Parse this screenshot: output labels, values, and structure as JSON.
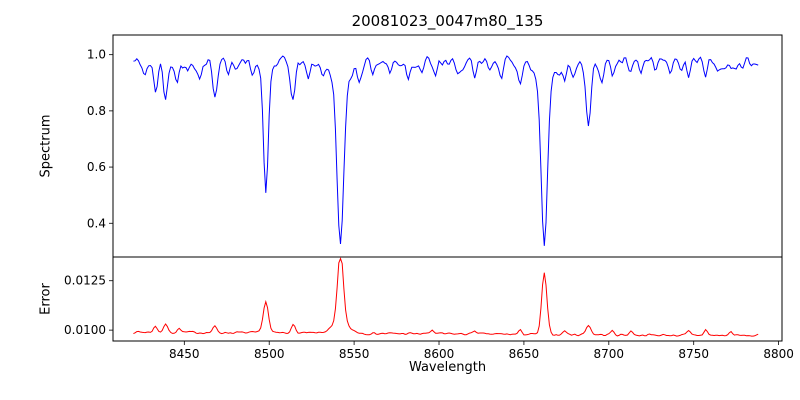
{
  "chart_data": {
    "type": "line",
    "title": "20081023_0047m80_135",
    "xlabel": "Wavelength",
    "xlim": [
      8408,
      8802
    ],
    "xticks": [
      8450,
      8500,
      8550,
      8600,
      8650,
      8700,
      8750,
      8800
    ],
    "xtick_labels": [
      "8450",
      "8500",
      "8550",
      "8600",
      "8650",
      "8700",
      "8750",
      "8800"
    ],
    "grid": false,
    "legend": "none",
    "panels": [
      {
        "name": "spectrum",
        "ylabel": "Spectrum",
        "ylim": [
          0.28,
          1.07
        ],
        "yticks": [
          0.4,
          0.6,
          0.8,
          1.0
        ],
        "ytick_labels": [
          "0.4",
          "0.6",
          "0.8",
          "1.0"
        ],
        "series": {
          "name": "spectrum-flux",
          "color": "#0000ff",
          "x_start": 8420,
          "x_end": 8788,
          "x_step": 1,
          "base_start": 0.973,
          "base_end": 0.973,
          "noise": 0.03,
          "seed": 42,
          "clip_max": 1.03,
          "feature_sign": -1,
          "features": [
            [
              8498,
              0.44,
              1.4
            ],
            [
              8498,
              0.03,
              4
            ],
            [
              8542,
              0.59,
              1.9
            ],
            [
              8542,
              0.07,
              5.5
            ],
            [
              8662,
              0.57,
              1.8
            ],
            [
              8662,
              0.07,
              5.5
            ],
            [
              8688,
              0.24,
              1.5
            ],
            [
              8427,
              0.05,
              1.2
            ],
            [
              8433,
              0.1,
              1.3
            ],
            [
              8439,
              0.13,
              1.2
            ],
            [
              8446,
              0.06,
              1.1
            ],
            [
              8452,
              0.04,
              1.0
            ],
            [
              8459,
              0.06,
              1.1
            ],
            [
              8468,
              0.11,
              1.3
            ],
            [
              8476,
              0.05,
              1.0
            ],
            [
              8490,
              0.04,
              1.0
            ],
            [
              8514,
              0.13,
              1.4
            ],
            [
              8523,
              0.06,
              1.1
            ],
            [
              8532,
              0.04,
              1.0
            ],
            [
              8553,
              0.05,
              1.1
            ],
            [
              8561,
              0.03,
              1.0
            ],
            [
              8571,
              0.04,
              1.0
            ],
            [
              8582,
              0.05,
              1.1
            ],
            [
              8590,
              0.03,
              1.0
            ],
            [
              8598,
              0.06,
              1.1
            ],
            [
              8611,
              0.06,
              1.2
            ],
            [
              8621,
              0.07,
              1.2
            ],
            [
              8630,
              0.04,
              1.0
            ],
            [
              8637,
              0.04,
              1.0
            ],
            [
              8648,
              0.06,
              1.1
            ],
            [
              8674,
              0.06,
              1.1
            ],
            [
              8679,
              0.05,
              1.0
            ],
            [
              8696,
              0.05,
              1.1
            ],
            [
              8702,
              0.04,
              1.0
            ],
            [
              8713,
              0.05,
              1.1
            ],
            [
              8719,
              0.04,
              1.0
            ],
            [
              8727,
              0.04,
              1.0
            ],
            [
              8736,
              0.04,
              1.0
            ],
            [
              8742,
              0.03,
              1.0
            ],
            [
              8747,
              0.05,
              1.1
            ],
            [
              8757,
              0.04,
              1.0
            ],
            [
              8764,
              0.04,
              1.0
            ],
            [
              8772,
              0.04,
              1.0
            ],
            [
              8779,
              0.03,
              1.0
            ]
          ]
        }
      },
      {
        "name": "error",
        "ylabel": "Error",
        "ylim": [
          0.00945,
          0.0137
        ],
        "yticks": [
          0.01,
          0.0125
        ],
        "ytick_labels": [
          "0.0100",
          "0.0125"
        ],
        "series": {
          "name": "error-level",
          "color": "#ff0000",
          "x_start": 8420,
          "x_end": 8788,
          "x_step": 1,
          "base_start": 0.0099,
          "base_end": 0.00972,
          "noise": 8e-05,
          "seed": 7,
          "clip_max": 0.01362,
          "feature_sign": 1,
          "features": [
            [
              8498,
              0.0016,
              1.5
            ],
            [
              8542,
              0.0036,
              1.7
            ],
            [
              8542,
              0.0005,
              5
            ],
            [
              8662,
              0.0031,
              1.5
            ],
            [
              8688,
              0.0005,
              1.4
            ],
            [
              8514,
              0.0004,
              1.3
            ],
            [
              8433,
              0.0003,
              1.2
            ],
            [
              8439,
              0.0004,
              1.2
            ],
            [
              8447,
              0.0002,
              1.0
            ],
            [
              8468,
              0.0003,
              1.2
            ],
            [
              8596,
              0.0002,
              1.0
            ],
            [
              8621,
              0.0002,
              1.0
            ],
            [
              8648,
              0.0002,
              1.0
            ],
            [
              8674,
              0.0002,
              1.0
            ],
            [
              8702,
              0.0002,
              1.0
            ],
            [
              8713,
              0.0002,
              1.0
            ],
            [
              8747,
              0.0002,
              1.0
            ],
            [
              8757,
              0.0003,
              1.0
            ],
            [
              8772,
              0.0002,
              1.0
            ]
          ]
        }
      }
    ]
  }
}
